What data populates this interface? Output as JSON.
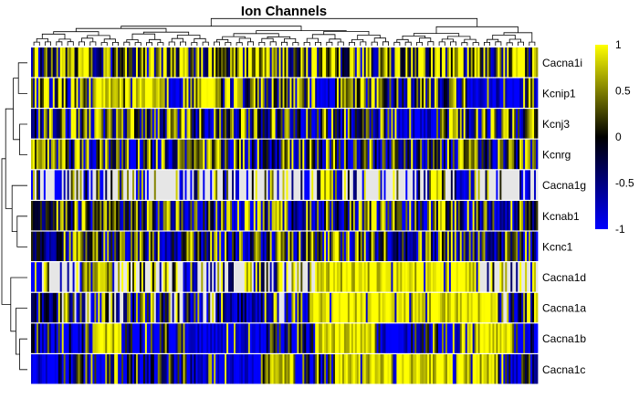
{
  "chart_data": {
    "type": "heatmap",
    "title": "Ion Channels",
    "xlabel": "",
    "ylabel": "",
    "rows": [
      "Cacna1i",
      "Kcnip1",
      "Kcnj3",
      "Kcnrg",
      "Cacna1g",
      "Kcnab1",
      "Kcnc1",
      "Cacna1d",
      "Cacna1a",
      "Cacna1b",
      "Cacna1c"
    ],
    "row_profiles": [
      {
        "base": 0.45,
        "segments": []
      },
      {
        "base": 0.2,
        "segments": [
          {
            "from": 0.12,
            "to": 0.18,
            "v": 0.95
          },
          {
            "from": 0.2,
            "to": 0.26,
            "v": 0.95
          },
          {
            "from": 0.27,
            "to": 0.3,
            "v": -0.9
          },
          {
            "from": 0.33,
            "to": 0.37,
            "v": 0.95
          },
          {
            "from": 0.55,
            "to": 0.6,
            "v": -0.9
          },
          {
            "from": 0.86,
            "to": 0.97,
            "v": -0.9
          }
        ]
      },
      {
        "base": 0.05,
        "segments": [
          {
            "from": 0.72,
            "to": 0.8,
            "v": -0.9
          },
          {
            "from": 0.82,
            "to": 0.84,
            "v": 0.9
          }
        ]
      },
      {
        "base": 0.0,
        "segments": [
          {
            "from": 0.3,
            "to": 0.34,
            "v": 0.3
          },
          {
            "from": 0.83,
            "to": 0.88,
            "v": 0.6
          }
        ]
      },
      {
        "base": -0.2,
        "missing": 0.55,
        "segments": [
          {
            "from": 0.57,
            "to": 0.61,
            "v": 0.95
          },
          {
            "from": 0.79,
            "to": 0.81,
            "v": 0.95
          },
          {
            "from": 0.84,
            "to": 0.88,
            "v": -0.9
          }
        ]
      },
      {
        "base": -0.05,
        "segments": [
          {
            "from": 0.0,
            "to": 0.05,
            "v": -0.2
          }
        ]
      },
      {
        "base": 0.0,
        "segments": [
          {
            "from": 0.0,
            "to": 0.06,
            "v": -0.3
          }
        ]
      },
      {
        "base": 0.35,
        "missing": 0.45,
        "segments": [
          {
            "from": 0.0,
            "to": 0.02,
            "v": -1.2
          },
          {
            "from": 0.1,
            "to": 0.16,
            "v": 0.7
          },
          {
            "from": 0.3,
            "to": 0.33,
            "v": -0.9
          },
          {
            "from": 0.56,
            "to": 0.88,
            "v": 0.95
          }
        ]
      },
      {
        "base": 0.0,
        "missing": 0.25,
        "segments": [
          {
            "from": 0.0,
            "to": 0.05,
            "v": -0.3
          },
          {
            "from": 0.38,
            "to": 0.48,
            "v": -0.5
          },
          {
            "from": 0.55,
            "to": 0.6,
            "v": 0.95
          },
          {
            "from": 0.6,
            "to": 0.92,
            "v": 0.95
          }
        ]
      },
      {
        "base": -0.6,
        "segments": [
          {
            "from": 0.12,
            "to": 0.18,
            "v": 0.95
          },
          {
            "from": 0.31,
            "to": 0.45,
            "v": -0.95
          },
          {
            "from": 0.56,
            "to": 0.68,
            "v": 0.95
          },
          {
            "from": 0.69,
            "to": 0.74,
            "v": -0.9
          },
          {
            "from": 0.85,
            "to": 0.95,
            "v": 0.95
          }
        ]
      },
      {
        "base": -0.5,
        "segments": [
          {
            "from": 0.0,
            "to": 0.05,
            "v": -1.0
          },
          {
            "from": 0.33,
            "to": 0.45,
            "v": -0.95
          },
          {
            "from": 0.46,
            "to": 0.52,
            "v": 0.6
          },
          {
            "from": 0.6,
            "to": 0.92,
            "v": 0.9
          }
        ]
      }
    ],
    "n_columns": 280,
    "color_scale": {
      "min": -1,
      "max": 1,
      "low_color": "#0000ff",
      "mid_color": "#000000",
      "high_color": "#ffff00",
      "missing_color": "#e6e6e6",
      "ticks": [
        "-1",
        "-0.5",
        "0",
        "0.5",
        "1"
      ]
    },
    "dendrogram_rows": true,
    "dendrogram_columns": true,
    "legend": "right"
  }
}
